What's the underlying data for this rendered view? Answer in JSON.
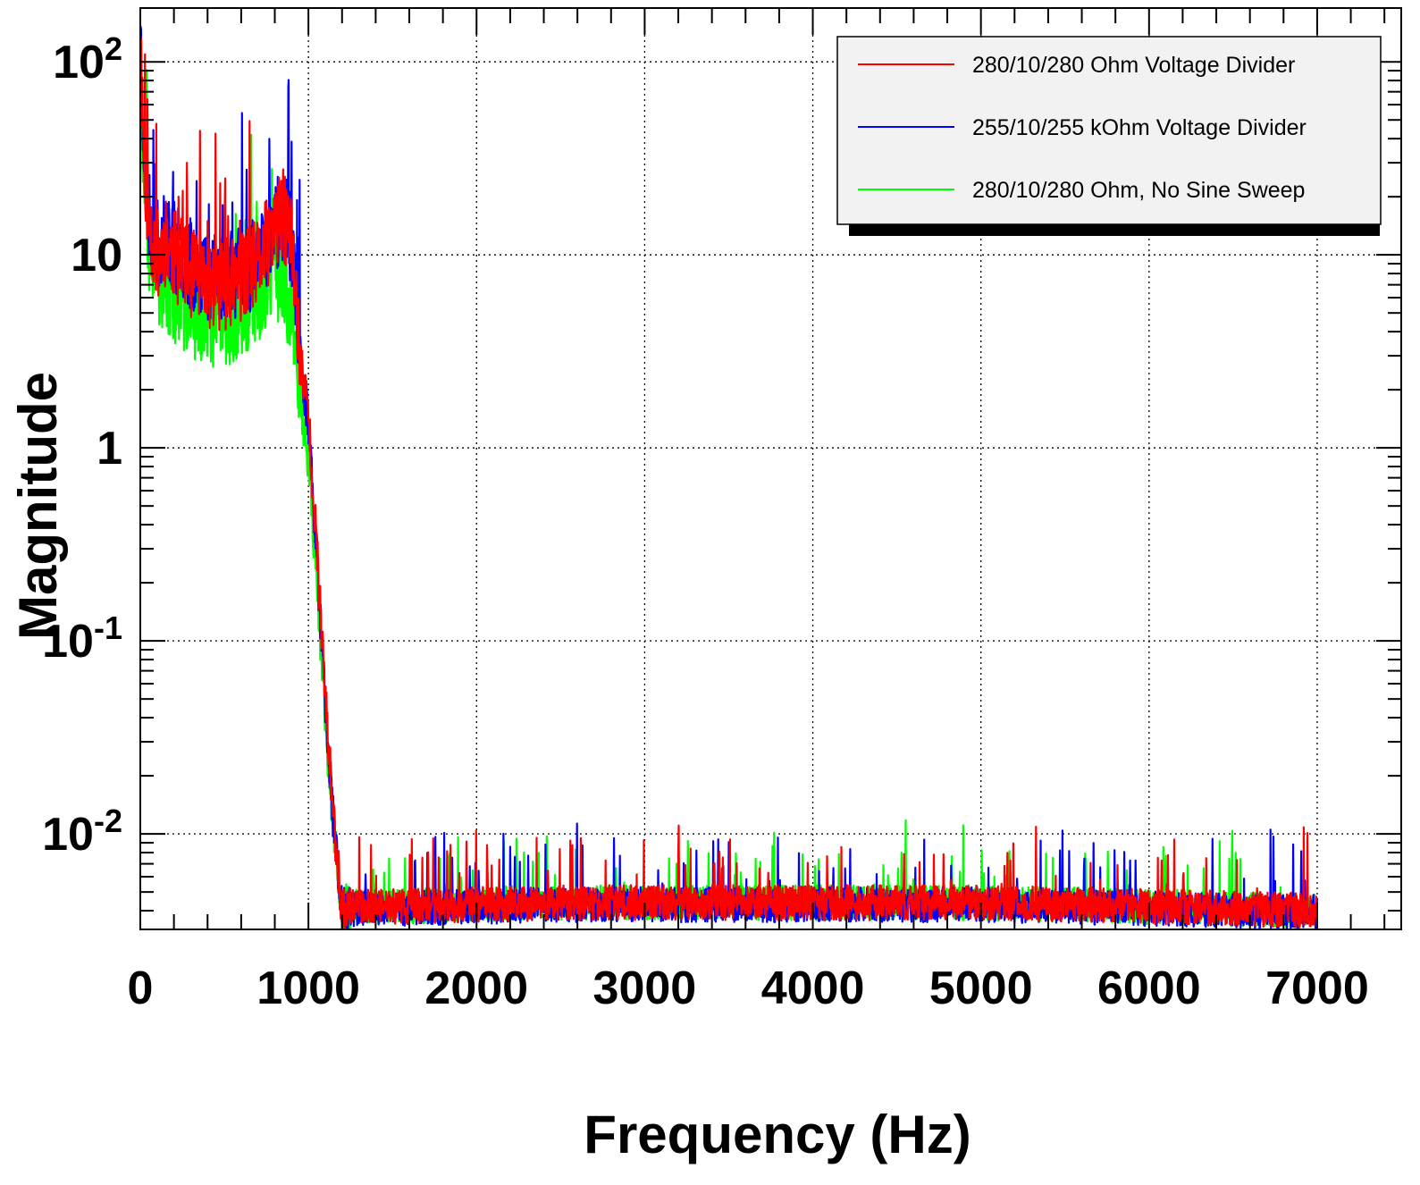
{
  "chart_data": {
    "type": "line",
    "title": "",
    "xlabel": "Frequency (Hz)",
    "ylabel": "Magnitude",
    "xlim": [
      0,
      7500
    ],
    "ylim": [
      0.0032,
      190
    ],
    "y_scale": "log",
    "grid": true,
    "legend_position": "top-right",
    "x_ticks": [
      {
        "value": 0,
        "label": "0"
      },
      {
        "value": 1000,
        "label": "1000"
      },
      {
        "value": 2000,
        "label": "2000"
      },
      {
        "value": 3000,
        "label": "3000"
      },
      {
        "value": 4000,
        "label": "4000"
      },
      {
        "value": 5000,
        "label": "5000"
      },
      {
        "value": 6000,
        "label": "6000"
      },
      {
        "value": 7000,
        "label": "7000"
      }
    ],
    "y_ticks": [
      {
        "value": 0.01,
        "base": "10",
        "exp": "-2",
        "label": ""
      },
      {
        "value": 0.1,
        "base": "10",
        "exp": "-1",
        "label": ""
      },
      {
        "value": 1,
        "base": "",
        "exp": "",
        "label": "1"
      },
      {
        "value": 10,
        "base": "",
        "exp": "",
        "label": "10"
      },
      {
        "value": 100,
        "base": "10",
        "exp": "2",
        "label": ""
      }
    ],
    "series": [
      {
        "name": "280/10/280 Ohm Voltage Divider",
        "color": "#ff0000",
        "x": [
          0,
          20,
          50,
          100,
          150,
          200,
          300,
          400,
          500,
          600,
          700,
          800,
          850,
          900,
          950,
          1000,
          1050,
          1100,
          1150,
          1200,
          1250,
          1500,
          2000,
          2500,
          3000,
          3500,
          4000,
          4500,
          5000,
          5500,
          6000,
          6500,
          7000
        ],
        "y": [
          150,
          35,
          15,
          10,
          12,
          10,
          8,
          7,
          7,
          7.5,
          9,
          14,
          16,
          12,
          3,
          1.5,
          0.3,
          0.05,
          0.012,
          0.004,
          0.0042,
          0.0042,
          0.0043,
          0.0044,
          0.0044,
          0.0044,
          0.0044,
          0.0044,
          0.0044,
          0.0043,
          0.0042,
          0.0041,
          0.004
        ]
      },
      {
        "name": "255/10/255 kOhm Voltage Divider",
        "color": "#0000ff",
        "x": [
          0,
          20,
          50,
          100,
          150,
          200,
          300,
          400,
          500,
          600,
          700,
          800,
          850,
          900,
          950,
          1000,
          1050,
          1100,
          1150,
          1200,
          1250,
          1500,
          2000,
          2500,
          3000,
          3500,
          4000,
          4500,
          5000,
          5500,
          6000,
          6500,
          7000
        ],
        "y": [
          170,
          38,
          16,
          11,
          13,
          11,
          9,
          8,
          7.5,
          8,
          9.5,
          14,
          16,
          12,
          3,
          1.4,
          0.28,
          0.045,
          0.011,
          0.0039,
          0.0041,
          0.0041,
          0.0042,
          0.0043,
          0.0043,
          0.0043,
          0.0043,
          0.0043,
          0.0043,
          0.0042,
          0.0041,
          0.004,
          0.0039
        ]
      },
      {
        "name": "280/10/280 Ohm, No Sine Sweep",
        "color": "#00ff00",
        "x": [
          0,
          20,
          50,
          100,
          150,
          200,
          300,
          400,
          500,
          600,
          700,
          800,
          850,
          900,
          950,
          1000,
          1050,
          1100,
          1150,
          1200,
          1250,
          1500,
          2000,
          2500,
          3000,
          3500,
          4000,
          4500,
          5000,
          5500,
          6000,
          6500,
          7000
        ],
        "y": [
          120,
          25,
          10,
          7,
          7,
          6,
          5,
          4.5,
          4.5,
          5,
          6,
          8,
          7,
          5,
          2,
          0.8,
          0.2,
          0.04,
          0.01,
          0.004,
          0.0042,
          0.0042,
          0.0043,
          0.0044,
          0.0044,
          0.0044,
          0.0044,
          0.0044,
          0.0044,
          0.0043,
          0.0042,
          0.0041,
          0.004
        ]
      }
    ]
  }
}
